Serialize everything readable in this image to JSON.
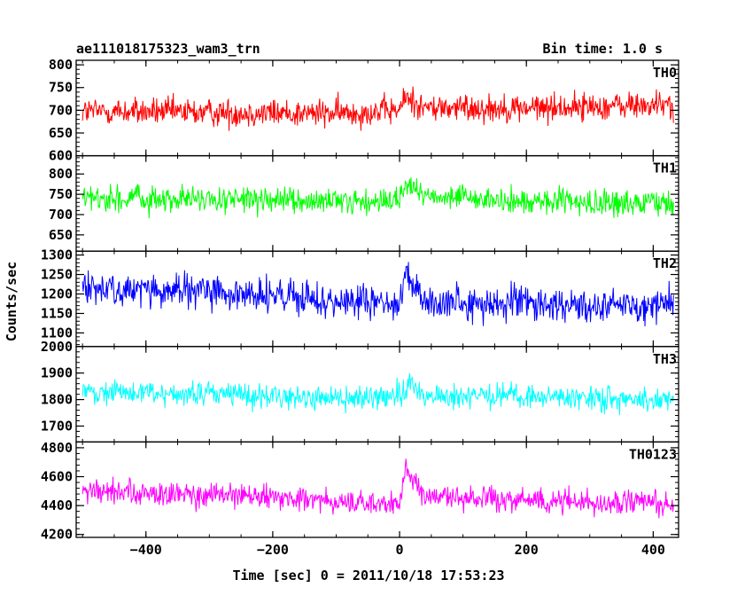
{
  "title_left": "ae111018175323_wam3_trn",
  "title_right": "Bin time: 1.0 s",
  "ylabel": "Counts/sec",
  "xlabel": "Time [sec] 0 = 2011/10/18 17:53:23",
  "chart_data": {
    "type": "line",
    "grid": false,
    "xlim": [
      -510,
      440
    ],
    "x_ticks": [
      -400,
      -200,
      0,
      200,
      400
    ],
    "x_tick_labels": [
      "−400",
      "−200",
      "0",
      "200",
      "400"
    ],
    "x_range_data": [
      -500,
      432
    ],
    "x_step": 1,
    "panels": [
      {
        "name": "TH0",
        "color": "#ff0000",
        "ylim": [
          600,
          810
        ],
        "yticks": [
          600,
          650,
          700,
          750,
          800
        ],
        "mean": 697,
        "noise": 28,
        "anchors": [
          [
            -500,
            698
          ],
          [
            -300,
            695
          ],
          [
            -100,
            693
          ],
          [
            0,
            700
          ],
          [
            10,
            730
          ],
          [
            40,
            705
          ],
          [
            200,
            705
          ],
          [
            432,
            712
          ]
        ]
      },
      {
        "name": "TH1",
        "color": "#00ff00",
        "ylim": [
          610,
          845
        ],
        "yticks": [
          650,
          700,
          750,
          800
        ],
        "mean": 735,
        "noise": 28,
        "anchors": [
          [
            -500,
            740
          ],
          [
            -300,
            737
          ],
          [
            -100,
            730
          ],
          [
            0,
            735
          ],
          [
            10,
            775
          ],
          [
            40,
            745
          ],
          [
            200,
            730
          ],
          [
            432,
            728
          ]
        ]
      },
      {
        "name": "TH2",
        "color": "#0000ff",
        "ylim": [
          1065,
          1310
        ],
        "yticks": [
          1100,
          1150,
          1200,
          1250,
          1300
        ],
        "mean": 1190,
        "noise": 40,
        "anchors": [
          [
            -500,
            1215
          ],
          [
            -300,
            1205
          ],
          [
            -100,
            1180
          ],
          [
            0,
            1175
          ],
          [
            10,
            1240
          ],
          [
            40,
            1180
          ],
          [
            200,
            1175
          ],
          [
            432,
            1170
          ]
        ]
      },
      {
        "name": "TH3",
        "color": "#00ffff",
        "ylim": [
          1640,
          2000
        ],
        "yticks": [
          1700,
          1800,
          1900,
          2000
        ],
        "mean": 1815,
        "noise": 42,
        "anchors": [
          [
            -500,
            1830
          ],
          [
            -300,
            1820
          ],
          [
            -100,
            1805
          ],
          [
            0,
            1810
          ],
          [
            10,
            1860
          ],
          [
            40,
            1815
          ],
          [
            200,
            1810
          ],
          [
            432,
            1800
          ]
        ]
      },
      {
        "name": "TH0123",
        "color": "#ff00ff",
        "ylim": [
          4180,
          4840
        ],
        "yticks": [
          4200,
          4400,
          4600,
          4800
        ],
        "mean": 4450,
        "noise": 75,
        "anchors": [
          [
            -500,
            4500
          ],
          [
            -300,
            4470
          ],
          [
            -100,
            4430
          ],
          [
            0,
            4400
          ],
          [
            10,
            4650
          ],
          [
            40,
            4460
          ],
          [
            200,
            4440
          ],
          [
            432,
            4410
          ]
        ]
      }
    ]
  }
}
